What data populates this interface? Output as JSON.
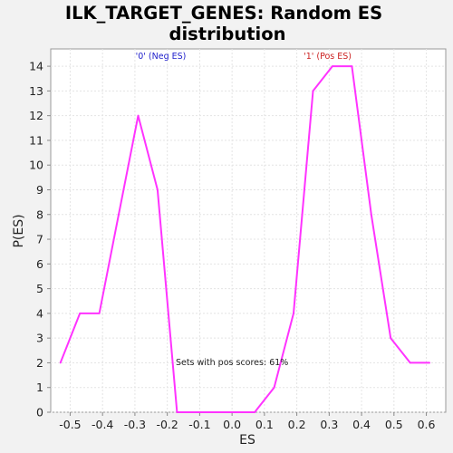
{
  "chart_data": {
    "type": "line",
    "title_lines": [
      "ILK_TARGET_GENES: Random ES",
      "distribution"
    ],
    "xlabel": "ES",
    "ylabel": "P(ES)",
    "xlim": [
      -0.56,
      0.66
    ],
    "ylim": [
      0,
      14.7
    ],
    "x_ticks": [
      "-0.5",
      "-0.4",
      "-0.3",
      "-0.2",
      "-0.1",
      "0.0",
      "0.1",
      "0.2",
      "0.3",
      "0.4",
      "0.5",
      "0.6"
    ],
    "x_tick_values": [
      -0.5,
      -0.4,
      -0.3,
      -0.2,
      -0.1,
      0.0,
      0.1,
      0.2,
      0.3,
      0.4,
      0.5,
      0.6
    ],
    "y_ticks": [
      "0",
      "1",
      "2",
      "3",
      "4",
      "5",
      "6",
      "7",
      "8",
      "9",
      "10",
      "11",
      "12",
      "13",
      "14"
    ],
    "y_tick_values": [
      0,
      1,
      2,
      3,
      4,
      5,
      6,
      7,
      8,
      9,
      10,
      11,
      12,
      13,
      14
    ],
    "grid": true,
    "series": [
      {
        "color": "#ff33ff",
        "x": [
          -0.53,
          -0.47,
          -0.41,
          -0.35,
          -0.29,
          -0.23,
          -0.17,
          -0.11,
          -0.05,
          0.01,
          0.07,
          0.13,
          0.19,
          0.25,
          0.31,
          0.37,
          0.43,
          0.49,
          0.55,
          0.61
        ],
        "y": [
          2,
          4,
          4,
          8,
          12,
          9,
          0,
          0,
          0,
          0,
          0,
          1,
          4,
          13,
          14,
          14,
          8,
          3,
          2,
          2
        ]
      }
    ],
    "annotations": [
      {
        "text": "'0' (Neg ES)",
        "x": -0.22,
        "y": 14.3,
        "color": "#2222cc"
      },
      {
        "text": "'1' (Pos ES)",
        "x": 0.295,
        "y": 14.3,
        "color": "#cc2222"
      },
      {
        "text": "Sets with pos scores: 61%",
        "x": 0.0,
        "y": 1.9,
        "color": "#222222"
      }
    ]
  }
}
